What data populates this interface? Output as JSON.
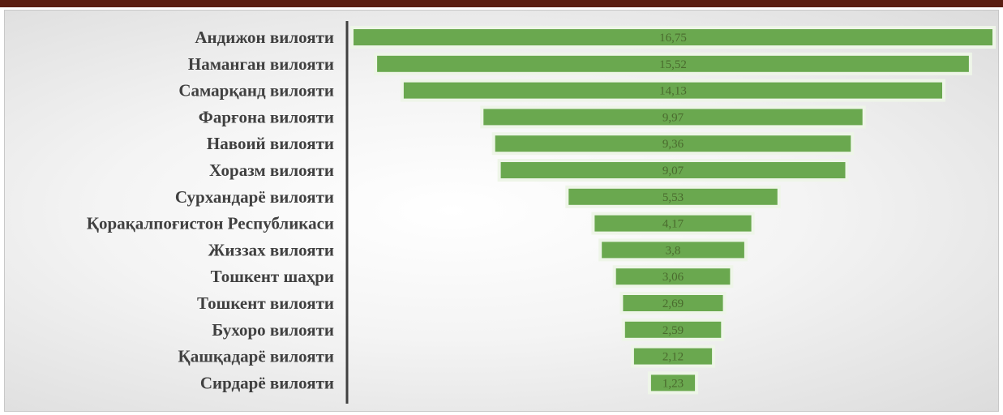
{
  "colors": {
    "bar_fill": "#6aa84f",
    "bar_outline": "#eef5e8",
    "axis_line": "#404040",
    "top_bar": "#5a1e12"
  },
  "chart_data": {
    "type": "bar",
    "orientation": "horizontal",
    "layout": "funnel",
    "grid": false,
    "legend": "none",
    "xlim": [
      0,
      16.75
    ],
    "categories": [
      "Андижон вилояти",
      "Наманган вилояти",
      "Самарқанд вилояти",
      "Фарғона вилояти",
      "Навоий вилояти",
      "Хоразм вилояти",
      "Сурхандарё вилояти",
      "Қорақалпоғистон Республикаси",
      "Жиззах вилояти",
      "Тошкент шаҳри",
      "Тошкент вилояти",
      "Бухоро вилояти",
      "Қашқадарё вилояти",
      "Сирдарё вилояти"
    ],
    "values": [
      16.75,
      15.52,
      14.13,
      9.97,
      9.36,
      9.07,
      5.53,
      4.17,
      3.8,
      3.06,
      2.69,
      2.59,
      2.12,
      1.23
    ],
    "value_labels": [
      "16,75",
      "15,52",
      "14,13",
      "9,97",
      "9,36",
      "9,07",
      "5,53",
      "4,17",
      "3,8",
      "3,06",
      "2,69",
      "2,59",
      "2,12",
      "1,23"
    ]
  }
}
